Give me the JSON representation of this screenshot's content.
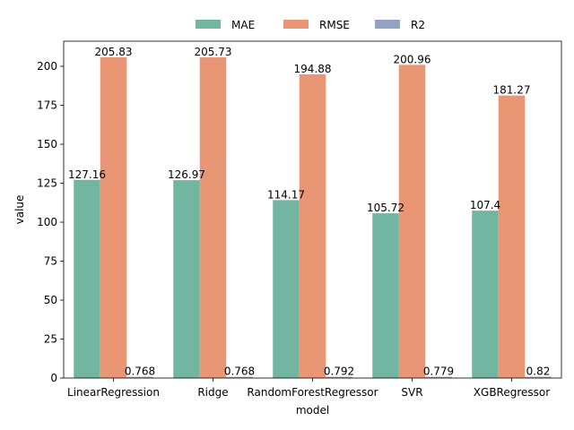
{
  "chart_data": {
    "type": "bar",
    "title": "",
    "xlabel": "model",
    "ylabel": "value",
    "categories": [
      "LinearRegression",
      "Ridge",
      "RandomForestRegressor",
      "SVR",
      "XGBRegressor"
    ],
    "series": [
      {
        "name": "MAE",
        "color": "#72b6a1",
        "values": [
          127.16,
          126.97,
          114.17,
          105.72,
          107.4
        ],
        "labels": [
          "127.16",
          "126.97",
          "114.17",
          "105.72",
          "107.4"
        ]
      },
      {
        "name": "RMSE",
        "color": "#e99675",
        "values": [
          205.83,
          205.73,
          194.88,
          200.96,
          181.27
        ],
        "labels": [
          "205.83",
          "205.73",
          "194.88",
          "200.96",
          "181.27"
        ]
      },
      {
        "name": "R2",
        "color": "#95a3c3",
        "values": [
          0.768,
          0.768,
          0.792,
          0.779,
          0.82
        ],
        "labels": [
          "0.768",
          "0.768",
          "0.792",
          "0.779",
          "0.82"
        ]
      }
    ],
    "ylim": [
      0,
      216.12
    ],
    "yticks": [
      0,
      25,
      50,
      75,
      100,
      125,
      150,
      175,
      200
    ],
    "legend": "top-center",
    "grid": false
  }
}
